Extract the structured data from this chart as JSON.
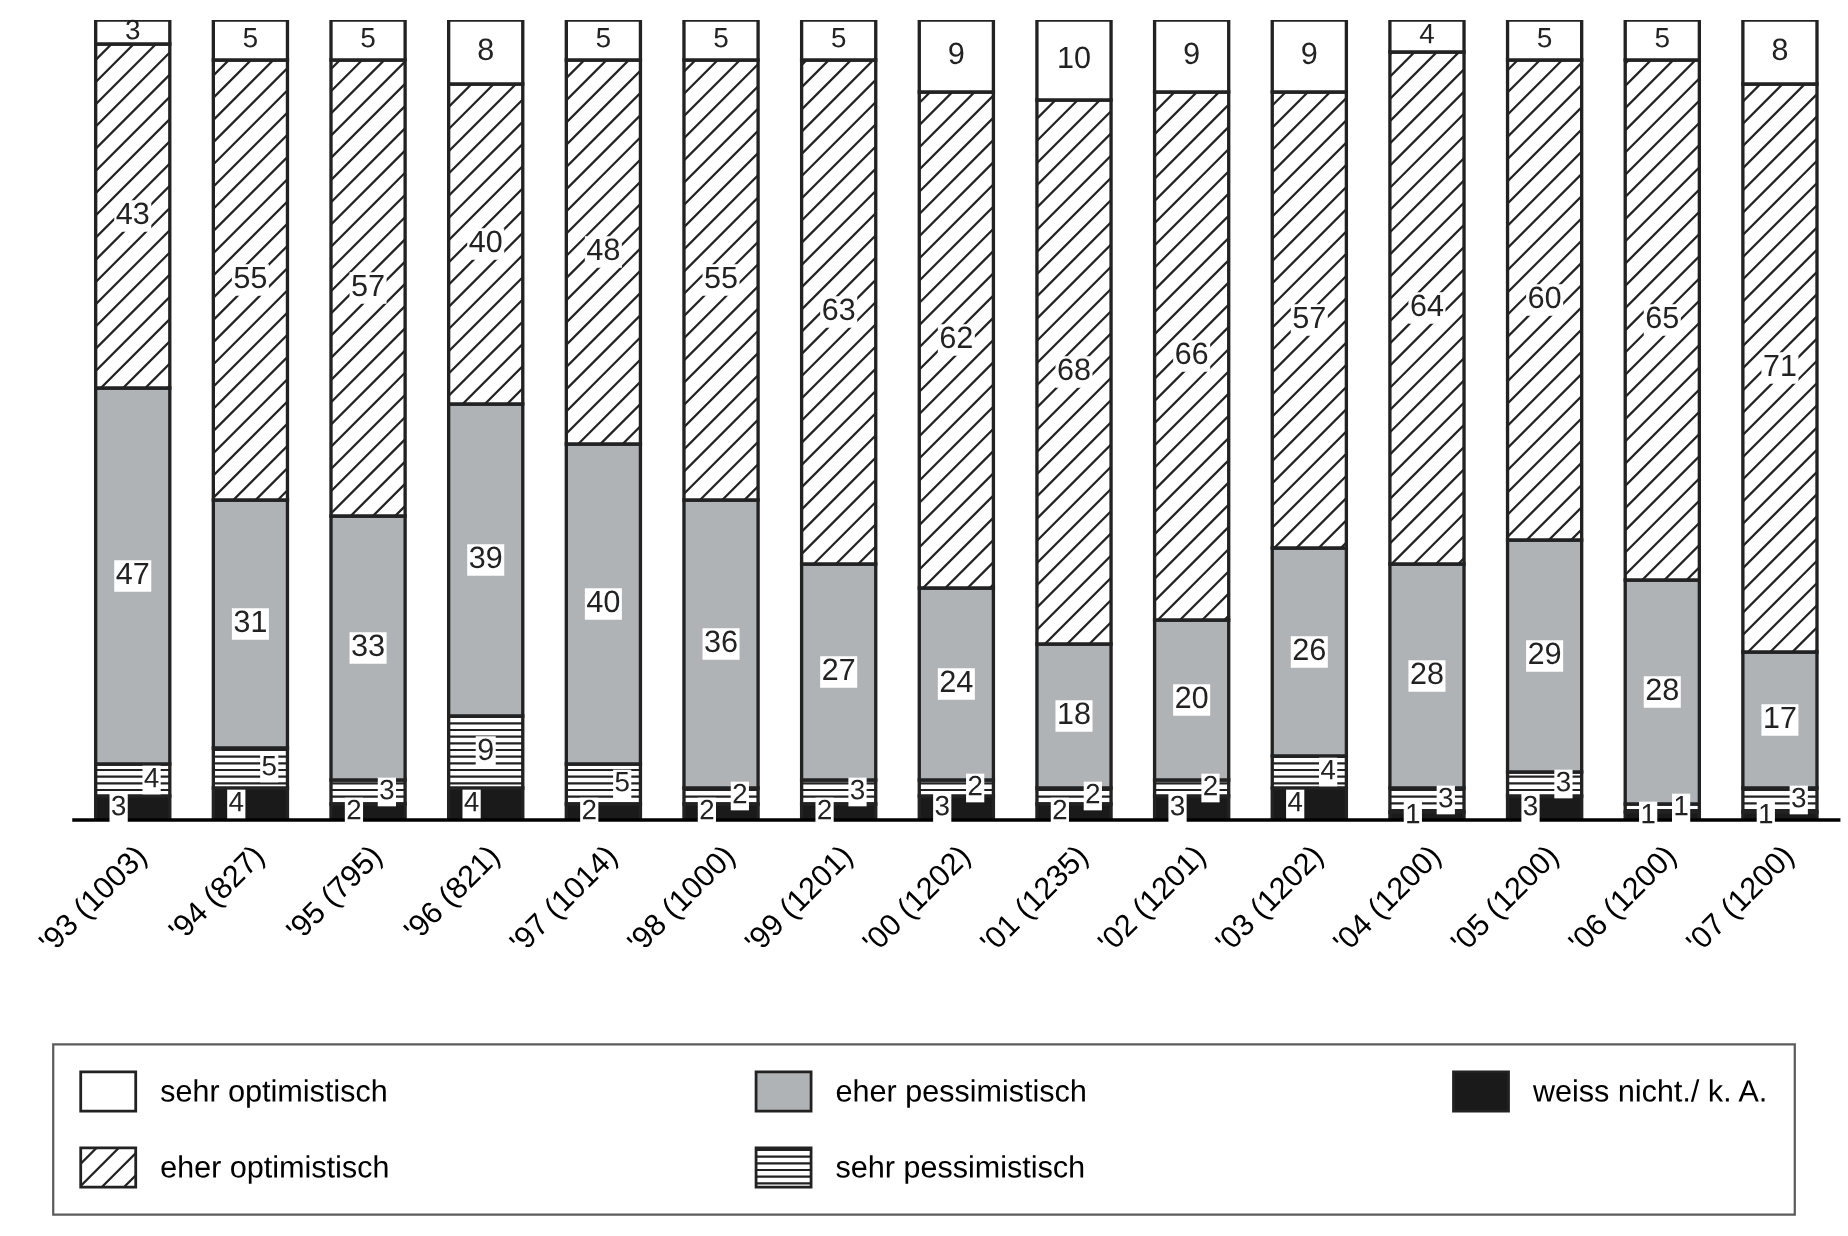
{
  "chart_data": {
    "type": "bar",
    "stacked": true,
    "data_labels": true,
    "legend": "bottom",
    "categories": [
      "'93 (1003)",
      "'94 (827)",
      "'95 (795)",
      "'96 (821)",
      "'97 (1014)",
      "'98 (1000)",
      "'99 (1201)",
      "'00 (1202)",
      "'01 (1235)",
      "'02 (1201)",
      "'03 (1202)",
      "'04 (1200)",
      "'05 (1200)",
      "'06 (1200)",
      "'07 (1200)"
    ],
    "series": [
      {
        "name": "weiss nicht./ k. A.",
        "color": "#1a1a1a",
        "values": [
          3,
          4,
          2,
          4,
          2,
          2,
          2,
          3,
          2,
          3,
          4,
          1,
          3,
          1,
          1
        ]
      },
      {
        "name": "sehr pessimistisch",
        "color": "#222222",
        "values": [
          4,
          5,
          3,
          9,
          5,
          2,
          3,
          2,
          2,
          2,
          4,
          3,
          3,
          1,
          3
        ]
      },
      {
        "name": "eher pessimistisch",
        "color": "#b0b3b6",
        "values": [
          47,
          31,
          33,
          39,
          40,
          36,
          27,
          24,
          18,
          20,
          26,
          28,
          29,
          28,
          17
        ]
      },
      {
        "name": "eher optimistisch",
        "color": "#222222",
        "values": [
          43,
          55,
          57,
          40,
          48,
          55,
          63,
          62,
          68,
          66,
          57,
          64,
          60,
          65,
          71
        ]
      },
      {
        "name": "sehr optimistisch",
        "color": "#ffffff",
        "values": [
          3,
          5,
          5,
          8,
          5,
          5,
          5,
          9,
          10,
          9,
          9,
          4,
          5,
          5,
          8
        ]
      }
    ]
  }
}
